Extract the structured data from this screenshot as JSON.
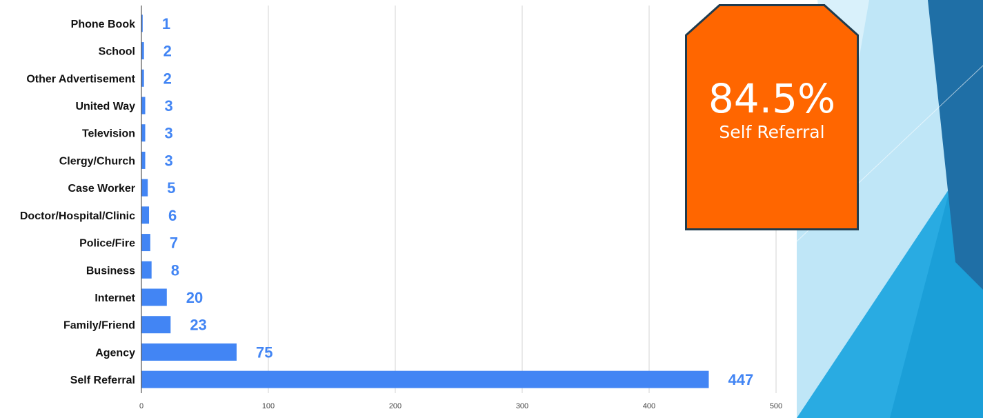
{
  "chart_data": {
    "type": "bar",
    "orientation": "horizontal",
    "categories": [
      "Phone Book",
      "School",
      "Other Advertisement",
      "United Way",
      "Television",
      "Clergy/Church",
      "Case Worker",
      "Doctor/Hospital/Clinic",
      "Police/Fire",
      "Business",
      "Internet",
      "Family/Friend",
      "Agency",
      "Self Referral"
    ],
    "values": [
      1,
      2,
      2,
      3,
      3,
      3,
      5,
      6,
      7,
      8,
      20,
      23,
      75,
      447
    ],
    "xlim": [
      0,
      500
    ],
    "xticks": [
      0,
      100,
      200,
      300,
      400,
      500
    ],
    "bar_color": "#4285f4",
    "label_color": "#4285f4",
    "grid": true,
    "data_labels": true
  },
  "callout": {
    "percent": "84.5%",
    "label": "Self Referral",
    "fill_color": "#ff6600",
    "border_color": "#1f3b4d"
  },
  "theme": {
    "accent_colors": [
      "#29abe2",
      "#1f6fa6",
      "#8fd3f0"
    ]
  }
}
